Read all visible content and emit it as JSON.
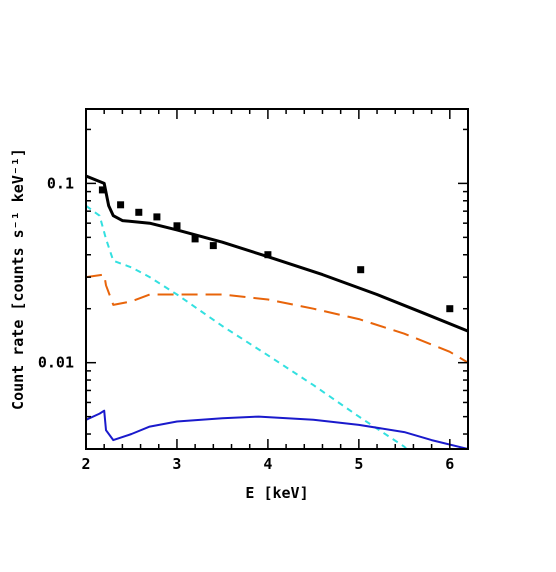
{
  "chart_data": {
    "type": "line",
    "title": "",
    "xlabel": "E [keV]",
    "ylabel": "Count rate [counts s⁻¹ keV⁻¹]",
    "xlim": [
      2,
      6.2
    ],
    "ylim": [
      0.0033,
      0.26
    ],
    "x_scale": "linear",
    "y_scale": "log",
    "x_ticks": [
      2,
      3,
      4,
      5,
      6
    ],
    "x_tick_labels": [
      "2",
      "3",
      "4",
      "5",
      "6"
    ],
    "y_ticks": [
      0.01,
      0.1
    ],
    "y_tick_labels": [
      "0.01",
      "0.1"
    ],
    "grid": false,
    "legend": "none",
    "data_points": {
      "marker": "square",
      "color": "#000000",
      "x": [
        2.18,
        2.38,
        2.58,
        2.78,
        3.0,
        3.2,
        3.4,
        4.0,
        5.02,
        6.0
      ],
      "y": [
        0.092,
        0.076,
        0.069,
        0.065,
        0.058,
        0.049,
        0.045,
        0.04,
        0.033,
        0.02
      ]
    },
    "series": [
      {
        "color": "#000000",
        "style": "solid",
        "width": 3,
        "x": [
          2.0,
          2.2,
          2.25,
          2.3,
          2.4,
          2.7,
          3.0,
          3.5,
          4.0,
          4.6,
          5.2,
          5.7,
          6.2
        ],
        "y": [
          0.11,
          0.1,
          0.075,
          0.066,
          0.062,
          0.06,
          0.055,
          0.047,
          0.039,
          0.031,
          0.024,
          0.019,
          0.015
        ]
      },
      {
        "color": "#e8640a",
        "style": "long-dash",
        "width": 2,
        "x": [
          2.0,
          2.2,
          2.22,
          2.3,
          2.5,
          2.7,
          3.0,
          3.5,
          4.0,
          4.5,
          5.0,
          5.5,
          6.0,
          6.2
        ],
        "y": [
          0.03,
          0.031,
          0.027,
          0.021,
          0.022,
          0.024,
          0.024,
          0.024,
          0.0225,
          0.02,
          0.0175,
          0.0145,
          0.0115,
          0.01
        ]
      },
      {
        "color": "#33e0e0",
        "style": "short-dash",
        "width": 2,
        "x": [
          2.0,
          2.15,
          2.22,
          2.3,
          2.5,
          2.7,
          3.0,
          3.5,
          4.0,
          4.5,
          5.0,
          5.5,
          5.6
        ],
        "y": [
          0.075,
          0.066,
          0.049,
          0.037,
          0.034,
          0.03,
          0.024,
          0.016,
          0.011,
          0.0075,
          0.005,
          0.0034,
          0.003
        ]
      },
      {
        "color": "#1a1acc",
        "style": "solid",
        "width": 2,
        "x": [
          2.0,
          2.15,
          2.2,
          2.22,
          2.3,
          2.5,
          2.7,
          3.0,
          3.5,
          3.9,
          4.5,
          5.0,
          5.5,
          5.8,
          6.2
        ],
        "y": [
          0.0048,
          0.0052,
          0.0054,
          0.0042,
          0.0037,
          0.004,
          0.0044,
          0.0047,
          0.0049,
          0.005,
          0.0048,
          0.0045,
          0.0041,
          0.0037,
          0.0033
        ]
      }
    ]
  }
}
